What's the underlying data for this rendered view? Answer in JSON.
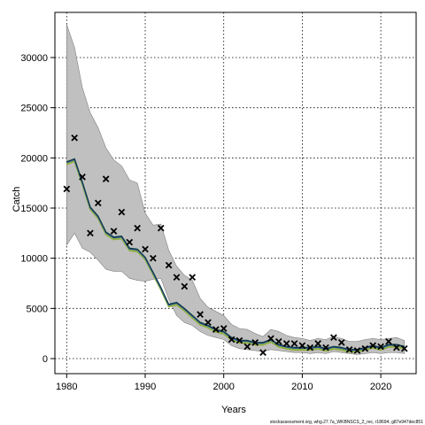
{
  "chart_data": {
    "type": "line",
    "xlabel": "Years",
    "ylabel": "Catch",
    "xlim": [
      1978.5,
      2024.5
    ],
    "ylim": [
      -1500,
      34500
    ],
    "x_ticks": [
      1980,
      1990,
      2000,
      2010,
      2020
    ],
    "y_ticks": [
      0,
      5000,
      10000,
      15000,
      20000,
      25000,
      30000
    ],
    "grid": true,
    "footer": "stockassessment.org, whg.27.7a_WKBNSCS_2_rec, r18694, g87e947dec851",
    "colors": {
      "band": "#c0c0c0",
      "band_border": "#808080",
      "line_green": "#86b84c",
      "line_blue": "#23408e",
      "line_dark": "#0d3b3b",
      "line_olive": "#a0a030",
      "points": "#000000"
    },
    "series": [
      {
        "role": "band",
        "x": [
          1980,
          1981,
          1982,
          1983,
          1984,
          1985,
          1986,
          1987,
          1988,
          1989,
          1990,
          1991,
          1992,
          1993,
          1994,
          1995,
          1996,
          1997,
          1998,
          1999,
          2000,
          2001,
          2002,
          2003,
          2004,
          2005,
          2006,
          2007,
          2008,
          2009,
          2010,
          2011,
          2012,
          2013,
          2014,
          2015,
          2016,
          2017,
          2018,
          2019,
          2020,
          2021,
          2022,
          2023
        ],
        "upper": [
          33300,
          31000,
          27000,
          24500,
          23000,
          21000,
          19800,
          19200,
          17800,
          17500,
          14500,
          13300,
          13400,
          10800,
          9200,
          8300,
          7800,
          6000,
          5100,
          4700,
          4300,
          3400,
          3000,
          2900,
          2500,
          2200,
          2900,
          2700,
          2300,
          2100,
          2000,
          1800,
          2000,
          1900,
          2200,
          2000,
          1700,
          1700,
          1900,
          2000,
          1900,
          2000,
          2100,
          1800
        ],
        "lower": [
          11300,
          12500,
          11000,
          10600,
          9800,
          8900,
          8700,
          8700,
          8000,
          7800,
          7700,
          7900,
          8000,
          5900,
          4300,
          3600,
          3300,
          2700,
          2300,
          2100,
          1900,
          1300,
          1000,
          900,
          800,
          700,
          900,
          800,
          700,
          600,
          600,
          500,
          600,
          500,
          700,
          600,
          500,
          400,
          500,
          600,
          500,
          600,
          600,
          500
        ]
      },
      {
        "role": "estimate",
        "x": [
          1980,
          1981,
          1982,
          1983,
          1984,
          1985,
          1986,
          1987,
          1988,
          1989,
          1990,
          1991,
          1992,
          1993,
          1994,
          1995,
          1996,
          1997,
          1998,
          1999,
          2000,
          2001,
          2002,
          2003,
          2004,
          2005,
          2006,
          2007,
          2008,
          2009,
          2010,
          2011,
          2012,
          2013,
          2014,
          2015,
          2016,
          2017,
          2018,
          2019,
          2020,
          2021,
          2022,
          2023
        ],
        "values": [
          19500,
          19800,
          17500,
          15000,
          14100,
          12500,
          12000,
          12100,
          10900,
          10800,
          10000,
          8500,
          7000,
          5300,
          5500,
          4900,
          4200,
          3500,
          3200,
          2800,
          2600,
          2000,
          1700,
          1700,
          1500,
          1500,
          1800,
          1300,
          1100,
          1000,
          1000,
          1000,
          1100,
          900,
          1100,
          1000,
          800,
          800,
          1000,
          1200,
          1000,
          1300,
          1300,
          1100
        ]
      },
      {
        "role": "observed",
        "x": [
          1980,
          1981,
          1982,
          1983,
          1984,
          1985,
          1986,
          1987,
          1988,
          1989,
          1990,
          1991,
          1992,
          1993,
          1994,
          1995,
          1996,
          1997,
          1998,
          1999,
          2000,
          2001,
          2002,
          2003,
          2004,
          2005,
          2006,
          2007,
          2008,
          2009,
          2010,
          2011,
          2012,
          2013,
          2014,
          2015,
          2016,
          2017,
          2018,
          2019,
          2020,
          2021,
          2022,
          2023
        ],
        "values": [
          16900,
          22000,
          18100,
          12500,
          15500,
          17900,
          12700,
          14600,
          11600,
          13000,
          10900,
          10000,
          13000,
          9300,
          8100,
          7200,
          8100,
          4400,
          3600,
          2900,
          3000,
          1900,
          1800,
          1200,
          1600,
          600,
          2000,
          1700,
          1500,
          1500,
          1300,
          1100,
          1500,
          1100,
          2100,
          1600,
          900,
          800,
          1000,
          1300,
          1200,
          1700,
          1100,
          1000
        ]
      }
    ]
  }
}
